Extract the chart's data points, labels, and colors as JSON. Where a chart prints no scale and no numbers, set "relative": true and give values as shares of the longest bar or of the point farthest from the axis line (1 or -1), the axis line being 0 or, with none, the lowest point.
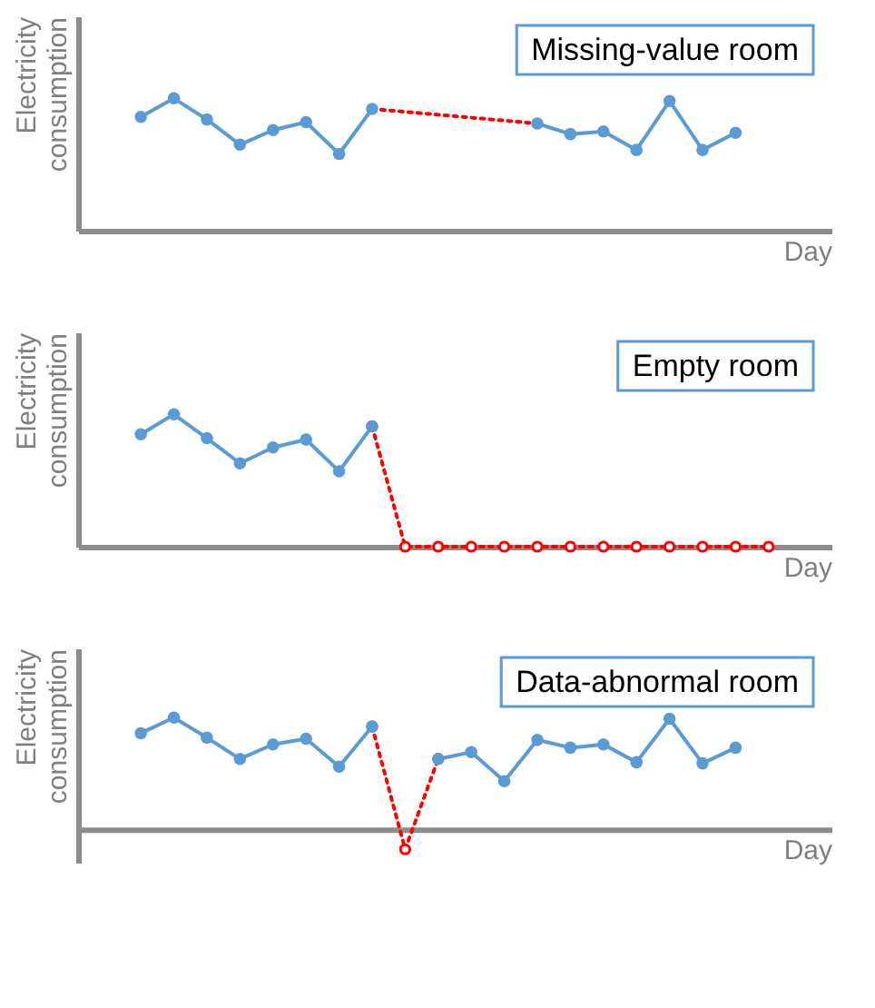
{
  "chart_data": [
    {
      "type": "line",
      "relative": true,
      "title": "Missing-value room",
      "xlabel": "Day",
      "ylabel": "Electricity consumption",
      "tick_labels": false,
      "categories": [
        null,
        null,
        null,
        null,
        null,
        null,
        null,
        null,
        null,
        null,
        null,
        null,
        null,
        null,
        null,
        null,
        null,
        null,
        null
      ],
      "series": [
        {
          "color": "#ff0000",
          "line_style": "dotted",
          "marker": "none",
          "values": [
            null,
            null,
            null,
            null,
            null,
            null,
            null,
            0.92,
            null,
            null,
            null,
            null,
            0.81,
            null,
            null,
            null,
            null,
            null,
            null
          ]
        },
        {
          "color": "#5b9bd5",
          "line_style": "solid",
          "marker": "circle",
          "values": [
            0.86,
            1.0,
            0.84,
            0.65,
            0.76,
            0.82,
            0.58,
            0.92,
            null,
            null,
            null,
            null,
            null,
            null,
            null,
            null,
            null,
            null,
            null
          ]
        },
        {
          "color": "#5b9bd5",
          "line_style": "solid",
          "marker": "circle",
          "values": [
            null,
            null,
            null,
            null,
            null,
            null,
            null,
            null,
            null,
            null,
            null,
            null,
            0.81,
            0.73,
            0.75,
            0.61,
            0.98,
            0.61,
            0.74
          ]
        }
      ]
    },
    {
      "type": "line",
      "relative": true,
      "title": "Empty room",
      "xlabel": "Day",
      "ylabel": "Electricity consumption",
      "tick_labels": false,
      "categories": [
        null,
        null,
        null,
        null,
        null,
        null,
        null,
        null,
        null,
        null,
        null,
        null,
        null,
        null,
        null,
        null,
        null,
        null,
        null,
        null
      ],
      "series": [
        {
          "color": "#ff0000",
          "line_style": "dotted",
          "marker": "circle",
          "values": [
            null,
            null,
            null,
            null,
            null,
            null,
            null,
            0.91,
            0,
            0,
            0,
            0,
            0,
            0,
            0,
            0,
            0,
            0,
            0,
            0
          ]
        },
        {
          "color": "#5b9bd5",
          "line_style": "solid",
          "marker": "circle",
          "values": [
            0.85,
            1.0,
            0.82,
            0.63,
            0.75,
            0.81,
            0.57,
            0.91,
            null,
            null,
            null,
            null,
            null,
            null,
            null,
            null,
            null,
            null,
            null,
            null
          ]
        }
      ]
    },
    {
      "type": "line",
      "relative": true,
      "title": "Data-abnormal room",
      "xlabel": "Day",
      "ylabel": "Electricity consumption",
      "tick_labels": false,
      "categories": [
        null,
        null,
        null,
        null,
        null,
        null,
        null,
        null,
        null,
        null,
        null,
        null,
        null,
        null,
        null,
        null,
        null,
        null,
        null
      ],
      "series": [
        {
          "color": "#ff0000",
          "line_style": "dotted",
          "marker": "circle",
          "values": [
            null,
            null,
            null,
            null,
            null,
            null,
            null,
            0.92,
            -0.18,
            0.63,
            null,
            null,
            null,
            null,
            null,
            null,
            null,
            null,
            null
          ]
        },
        {
          "color": "#5b9bd5",
          "line_style": "solid",
          "marker": "circle",
          "values": [
            0.86,
            1.0,
            0.82,
            0.63,
            0.76,
            0.81,
            0.56,
            0.92,
            null,
            null,
            null,
            null,
            null,
            null,
            null,
            null,
            null,
            null,
            null
          ]
        },
        {
          "color": "#5b9bd5",
          "line_style": "solid",
          "marker": "circle",
          "values": [
            null,
            null,
            null,
            null,
            null,
            null,
            null,
            null,
            null,
            0.63,
            0.69,
            0.43,
            0.8,
            0.73,
            0.76,
            0.6,
            0.99,
            0.59,
            0.73
          ]
        }
      ]
    }
  ]
}
